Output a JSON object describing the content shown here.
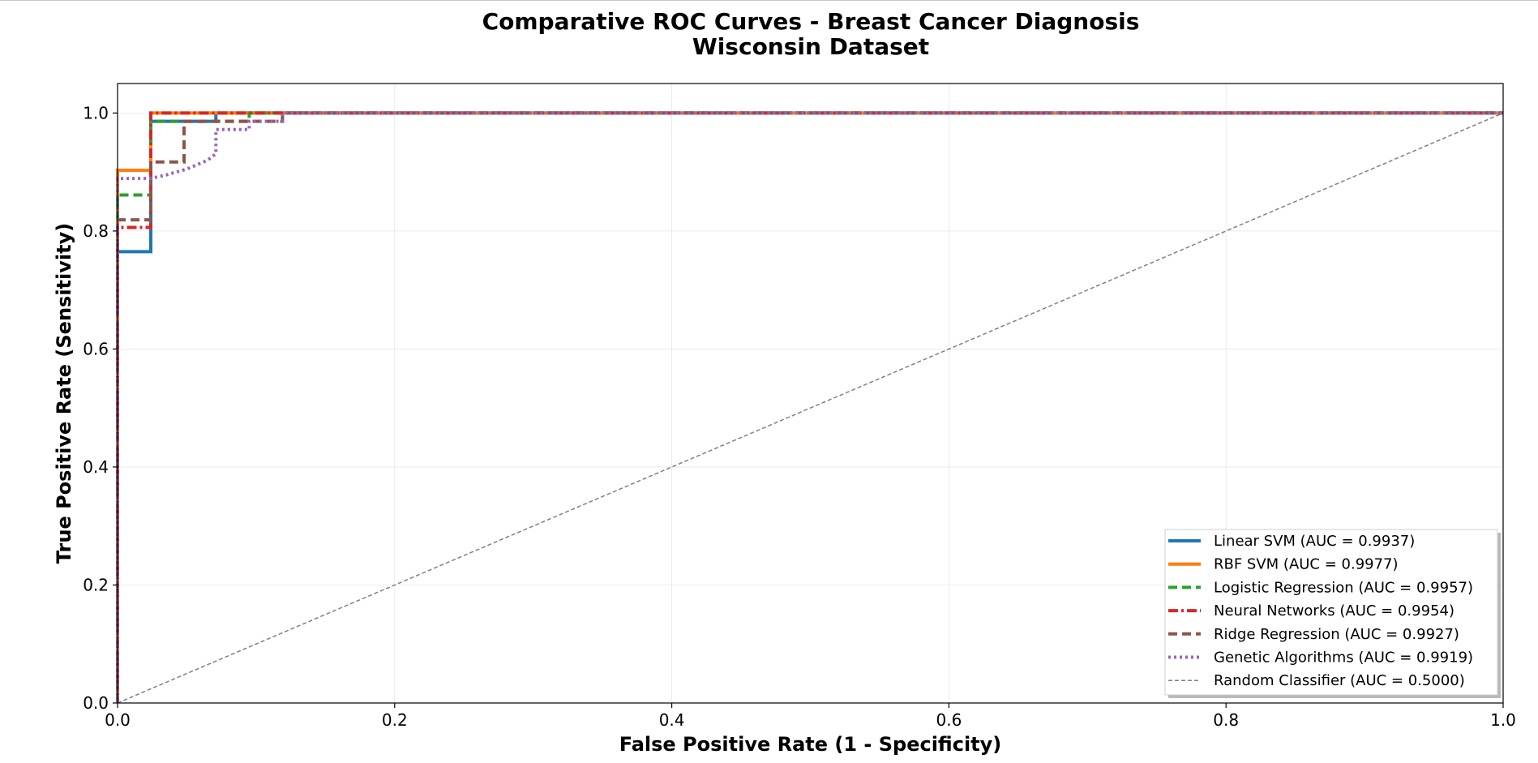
{
  "chart_data": {
    "type": "line",
    "title": "Comparative ROC Curves - Breast Cancer Diagnosis",
    "subtitle": "Wisconsin Dataset",
    "xlabel": "False Positive Rate (1 - Specificity)",
    "ylabel": "True Positive Rate (Sensitivity)",
    "xlim": [
      0.0,
      1.0
    ],
    "ylim": [
      0.0,
      1.05
    ],
    "xticks": [
      "0.0",
      "0.2",
      "0.4",
      "0.6",
      "0.8",
      "1.0"
    ],
    "yticks": [
      "0.0",
      "0.2",
      "0.4",
      "0.6",
      "0.8",
      "1.0"
    ],
    "grid": true,
    "legend_position": "bottom-right",
    "series": [
      {
        "name": "Linear SVM (AUC = 0.9937)",
        "color": "#1f77b4",
        "dash": "solid",
        "x": [
          0.0,
          0.0,
          0.024,
          0.024,
          0.071,
          0.071,
          1.0
        ],
        "y": [
          0.0,
          0.765,
          0.765,
          0.986,
          0.986,
          1.0,
          1.0
        ]
      },
      {
        "name": "RBF SVM (AUC = 0.9977)",
        "color": "#ff7f0e",
        "dash": "solid",
        "x": [
          0.0,
          0.0,
          0.024,
          0.024,
          1.0
        ],
        "y": [
          0.0,
          0.903,
          0.903,
          1.0,
          1.0
        ]
      },
      {
        "name": "Logistic Regression (AUC = 0.9957)",
        "color": "#2ca02c",
        "dash": "dashed",
        "x": [
          0.0,
          0.0,
          0.024,
          0.024,
          0.095,
          0.095,
          1.0
        ],
        "y": [
          0.0,
          0.861,
          0.861,
          0.986,
          0.986,
          1.0,
          1.0
        ]
      },
      {
        "name": "Neural Networks (AUC = 0.9954)",
        "color": "#d62728",
        "dash": "dashdot",
        "x": [
          0.0,
          0.0,
          0.024,
          0.024,
          1.0
        ],
        "y": [
          0.0,
          0.806,
          0.806,
          1.0,
          1.0
        ]
      },
      {
        "name": "Ridge Regression (AUC = 0.9927)",
        "color": "#8c564b",
        "dash": "dashed",
        "x": [
          0.0,
          0.0,
          0.024,
          0.024,
          0.048,
          0.048,
          0.119,
          0.119,
          1.0
        ],
        "y": [
          0.0,
          0.819,
          0.819,
          0.917,
          0.917,
          0.986,
          0.986,
          1.0,
          1.0
        ]
      },
      {
        "name": "Genetic Algorithms (AUC = 0.9919)",
        "color": "#9467bd",
        "dash": "dotted",
        "x": [
          0.0,
          0.0,
          0.024,
          0.035,
          0.05,
          0.065,
          0.071,
          0.071,
          0.095,
          0.095,
          0.119,
          0.119,
          1.0
        ],
        "y": [
          0.0,
          0.889,
          0.889,
          0.895,
          0.905,
          0.92,
          0.931,
          0.972,
          0.972,
          0.986,
          0.986,
          1.0,
          1.0
        ]
      },
      {
        "name": "Random Classifier (AUC = 0.5000)",
        "color": "#808080",
        "dash": "thin-dashed",
        "x": [
          0.0,
          1.0
        ],
        "y": [
          0.0,
          1.0
        ]
      }
    ]
  }
}
